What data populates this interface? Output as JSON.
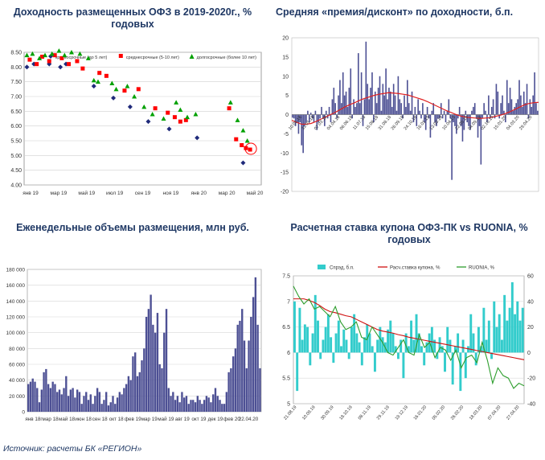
{
  "titles": {
    "c1": "Доходность размещенных ОФЗ в 2019-2020г., %",
    "c1_line2": "годовых",
    "c2": "Средняя «премия/дисконт» по доходности, б.п.",
    "c3": "Еженедельные объемы размещения, млн руб.",
    "c4": "Расчетная ставка купона ОФЗ-ПК vs RUONIA, %",
    "c4_line2": "годовых"
  },
  "source": "Источник:  расчеты БК «РЕГИОН»",
  "chart_data": [
    {
      "type": "scatter",
      "title": "Доходность размещенных ОФЗ в 2019-2020г., % годовых",
      "ylim": [
        4.0,
        8.5
      ],
      "yticks": [
        "4.00",
        "4.50",
        "5.00",
        "5.50",
        "6.00",
        "6.50",
        "7.00",
        "7.50",
        "8.00",
        "8.50"
      ],
      "xlim": [
        0,
        17
      ],
      "xtick_labels": [
        "янв 19",
        "мар 19",
        "май 19",
        "июл 19",
        "сен 19",
        "ноя 19",
        "янв 20",
        "мар 20",
        "май 20"
      ],
      "series": [
        {
          "name": "краткосрочные (до 5 лет)",
          "color": "#1f2a7a",
          "shape": "diamond",
          "x": [
            0.2,
            0.7,
            1.8,
            2.6,
            3.0,
            5.0,
            6.4,
            7.6,
            8.9,
            10.4,
            12.4,
            15.7
          ],
          "y": [
            8.0,
            8.1,
            8.1,
            8.0,
            8.1,
            7.35,
            6.95,
            6.65,
            6.15,
            5.9,
            5.6,
            4.75
          ]
        },
        {
          "name": "среднесрочные (5-10 лет)",
          "color": "#ff0000",
          "shape": "square",
          "x": [
            0.4,
            0.9,
            1.3,
            1.8,
            2.2,
            2.7,
            3.2,
            3.8,
            4.2,
            5.4,
            5.9,
            7.2,
            8.2,
            9.4,
            10.3,
            10.8,
            11.2,
            11.6,
            14.7,
            15.2,
            15.6,
            15.9,
            16.2
          ],
          "y": [
            8.25,
            8.1,
            8.35,
            8.2,
            8.4,
            8.3,
            8.1,
            8.2,
            7.95,
            7.8,
            7.7,
            7.2,
            7.25,
            6.6,
            6.45,
            6.3,
            6.15,
            6.2,
            6.6,
            5.55,
            5.35,
            5.25,
            5.2
          ]
        },
        {
          "name": "долгосрочные (более 10 лет)",
          "color": "#00a000",
          "shape": "triangle",
          "x": [
            0.2,
            0.6,
            1.1,
            1.5,
            2.0,
            2.5,
            2.9,
            3.4,
            4.0,
            4.6,
            5.0,
            5.3,
            6.3,
            6.6,
            7.4,
            7.9,
            8.6,
            9.2,
            10.0,
            10.9,
            11.2,
            11.7,
            12.3,
            14.8,
            15.3,
            15.7,
            16.0
          ],
          "y": [
            8.4,
            8.45,
            8.3,
            8.4,
            8.45,
            8.55,
            8.4,
            8.5,
            8.45,
            8.3,
            7.55,
            7.5,
            7.45,
            7.25,
            7.35,
            7.0,
            6.65,
            6.4,
            6.25,
            6.8,
            6.55,
            6.3,
            6.4,
            6.8,
            6.2,
            5.85,
            5.5
          ]
        }
      ]
    },
    {
      "type": "bar_with_line",
      "title": "Средняя «премия/дисконт» по доходности, б.п.",
      "ylim": [
        -20,
        20
      ],
      "yticks": [
        "-20",
        "-15",
        "-10",
        "-5",
        "0",
        "5",
        "10",
        "15",
        "20"
      ],
      "xtick_labels": [
        "10.01.18",
        "31.01.18",
        "07.03.18",
        "04.04.18",
        "06.06.18",
        "11.07.18",
        "15.08.18",
        "31.08.18",
        "26.09.18",
        "24.10.18",
        "16.01.19",
        "13.03.19",
        "10.04.19",
        "22.05.19",
        "04.09.19",
        "02.10.19",
        "15.01.20",
        "04.03.20",
        "29.04.20"
      ],
      "series": [
        {
          "name": "премия/дисконт",
          "color": "#4d5094",
          "values": [
            -0.8,
            -1,
            -3,
            -2,
            -5,
            -2,
            -8,
            -10,
            -3,
            -2,
            1,
            -2,
            0.5,
            -1,
            -2,
            1,
            -4,
            -2,
            -1,
            2,
            -1,
            -3,
            1,
            -1,
            2,
            -2,
            4,
            7,
            3,
            -1,
            5,
            9,
            3,
            11,
            5,
            6,
            2,
            7,
            12,
            -1,
            4,
            2,
            3,
            16,
            3,
            11,
            -3,
            4,
            19,
            8,
            4,
            7,
            11,
            -2,
            6,
            3,
            7,
            10,
            1,
            8,
            5,
            12,
            4,
            7,
            6,
            2,
            8,
            5,
            1,
            10,
            4,
            3,
            -1,
            5,
            2,
            9,
            3,
            1,
            6,
            -2,
            2,
            -3,
            4,
            1,
            -1,
            3,
            -2,
            -4,
            2,
            -1,
            -6,
            1,
            3,
            -2,
            -3,
            -1,
            -1,
            3,
            -1,
            1,
            -2,
            1,
            4,
            -1,
            -17,
            -2,
            -3,
            -5,
            -1,
            2,
            -3,
            -7,
            -4,
            1,
            -2,
            -3,
            -4,
            1,
            2,
            3,
            -1,
            -6,
            -3,
            -13,
            -1,
            3,
            1,
            -2,
            5,
            -1,
            2,
            4,
            -1,
            8,
            6,
            -1,
            3,
            5,
            1,
            -2,
            9,
            3,
            7,
            4,
            1,
            2,
            3,
            4,
            9,
            5,
            2,
            6,
            3,
            8,
            -1,
            4,
            2,
            5,
            11,
            3,
            1
          ]
        },
        {
          "name": "скользящее среднее",
          "color": "#e02020",
          "values": [
            -1.5,
            -2,
            -2.5,
            -2.5,
            -2.3,
            -1.8,
            -1.2,
            -0.6,
            0,
            0.6,
            1.3,
            2,
            2.6,
            3.1,
            3.7,
            4.2,
            4.6,
            5,
            5.3,
            5.5,
            5.7,
            5.6,
            5.5,
            5.3,
            5.1,
            4.7,
            4.3,
            3.9,
            3.4,
            2.8,
            2.2,
            1.6,
            1,
            0.5,
            0,
            -0.4,
            -0.7,
            -0.8,
            -0.9,
            -1,
            -0.9,
            -0.8,
            -0.5,
            -0.2,
            0.2,
            0.7,
            1.3,
            1.9,
            2.5,
            2.9,
            3.1,
            3.2
          ]
        }
      ]
    },
    {
      "type": "bar",
      "title": "Еженедельные объемы размещения, млн руб.",
      "ylim": [
        0,
        180000
      ],
      "yticks": [
        "0",
        "20 000",
        "40 000",
        "60 000",
        "80 000",
        "100 000",
        "120 000",
        "140 000",
        "160 000",
        "180 000"
      ],
      "xtick_labels": [
        "янв 18г",
        "мар 18",
        "май 18",
        "июн 18",
        "сен 18",
        "окт 18",
        "фев 19",
        "мар 19",
        "май 19",
        "авг 19",
        "окт 19",
        "дек 19",
        "фев 20",
        "22.04.20"
      ],
      "series": [
        {
          "name": "объем",
          "color": "#4d5094",
          "values": [
            35000,
            38000,
            42000,
            38000,
            30000,
            12000,
            28000,
            50000,
            54000,
            35000,
            30000,
            38000,
            35000,
            25000,
            28000,
            22000,
            30000,
            45000,
            20000,
            28000,
            30000,
            18000,
            28000,
            25000,
            10000,
            20000,
            25000,
            15000,
            22000,
            10000,
            20000,
            30000,
            25000,
            10000,
            15000,
            25000,
            8000,
            12000,
            20000,
            10000,
            18000,
            25000,
            22000,
            30000,
            35000,
            45000,
            40000,
            70000,
            75000,
            45000,
            50000,
            65000,
            80000,
            120000,
            130000,
            148000,
            110000,
            100000,
            125000,
            60000,
            55000,
            100000,
            130000,
            30000,
            20000,
            25000,
            15000,
            20000,
            12000,
            25000,
            18000,
            20000,
            10000,
            15000,
            15000,
            12000,
            20000,
            15000,
            10000,
            15000,
            20000,
            18000,
            12000,
            22000,
            30000,
            20000,
            15000,
            10000,
            10000,
            25000,
            50000,
            55000,
            70000,
            80000,
            110000,
            115000,
            130000,
            90000,
            55000,
            90000,
            120000,
            145000,
            170000,
            110000,
            55000
          ]
        }
      ]
    },
    {
      "type": "bar_with_lines",
      "title": "Расчетная ставка купона ОФЗ-ПК vs RUONIA, % годовых",
      "ylim_left": [
        5,
        7.5
      ],
      "yticks_left": [
        "5",
        "5.5",
        "6",
        "6.5",
        "7",
        "7.5"
      ],
      "ylim_right": [
        -40,
        60
      ],
      "yticks_right": [
        "-40",
        "-20",
        "0",
        "20",
        "40",
        "60"
      ],
      "xtick_labels": [
        "21.08.19",
        "10.09.19",
        "30.09.19",
        "18.10.19",
        "08.11.19",
        "29.11.19",
        "19.12.19",
        "16.01.20",
        "05.02.20",
        "26.02.20",
        "18.03.20",
        "07.04.20",
        "27.04.20"
      ],
      "series": [
        {
          "name": "Спрэд, б.п.",
          "axis": "right",
          "color": "#33cccc",
          "values": [
            40,
            -30,
            35,
            10,
            22,
            20,
            -10,
            15,
            45,
            25,
            -5,
            10,
            20,
            30,
            12,
            -8,
            15,
            25,
            5,
            18,
            10,
            -5,
            20,
            30,
            15,
            8,
            -10,
            12,
            22,
            15,
            5,
            -15,
            10,
            20,
            12,
            8,
            18,
            25,
            15,
            5,
            -5,
            10,
            -20,
            15,
            5,
            25,
            10,
            30,
            15,
            5,
            -10,
            8,
            15,
            20,
            10,
            -5,
            12,
            5,
            -15,
            20,
            10,
            -25,
            5,
            15,
            -30,
            10,
            -20,
            5,
            30,
            15,
            -10,
            20,
            5,
            35,
            10,
            25,
            -5,
            40,
            20,
            30,
            10,
            45,
            25,
            35,
            55,
            30,
            40,
            25,
            35
          ]
        },
        {
          "name": "Расч.ставка купона, %",
          "axis": "left",
          "color": "#d01010",
          "values": [
            7.05,
            7.05,
            7.05,
            7.02,
            6.98,
            6.92,
            6.85,
            6.8,
            6.78,
            6.75,
            6.72,
            6.7,
            6.65,
            6.6,
            6.55,
            6.5,
            6.45,
            6.42,
            6.4,
            6.38,
            6.35,
            6.33,
            6.3,
            6.28,
            6.26,
            6.24,
            6.22,
            6.2,
            6.18,
            6.16,
            6.14,
            6.12,
            6.1,
            6.08,
            6.06,
            6.04,
            6.02,
            6.0,
            5.98,
            5.96,
            5.94,
            5.92,
            5.9,
            5.88,
            5.86
          ]
        },
        {
          "name": "RUONIA, %",
          "axis": "left",
          "color": "#2e9e2e",
          "values": [
            7.3,
            7.1,
            6.95,
            7.05,
            6.85,
            6.9,
            6.8,
            6.7,
            6.9,
            6.6,
            6.45,
            6.5,
            6.6,
            6.3,
            6.25,
            6.5,
            6.35,
            6.2,
            6.0,
            5.95,
            6.1,
            6.25,
            6.0,
            5.95,
            6.35,
            6.1,
            6.2,
            5.9,
            6.1,
            6.05,
            5.85,
            6.05,
            5.7,
            5.9,
            5.95,
            5.8,
            6.2,
            5.85,
            5.4,
            5.7,
            5.55,
            5.5,
            5.3,
            5.4,
            5.35
          ]
        }
      ]
    }
  ]
}
